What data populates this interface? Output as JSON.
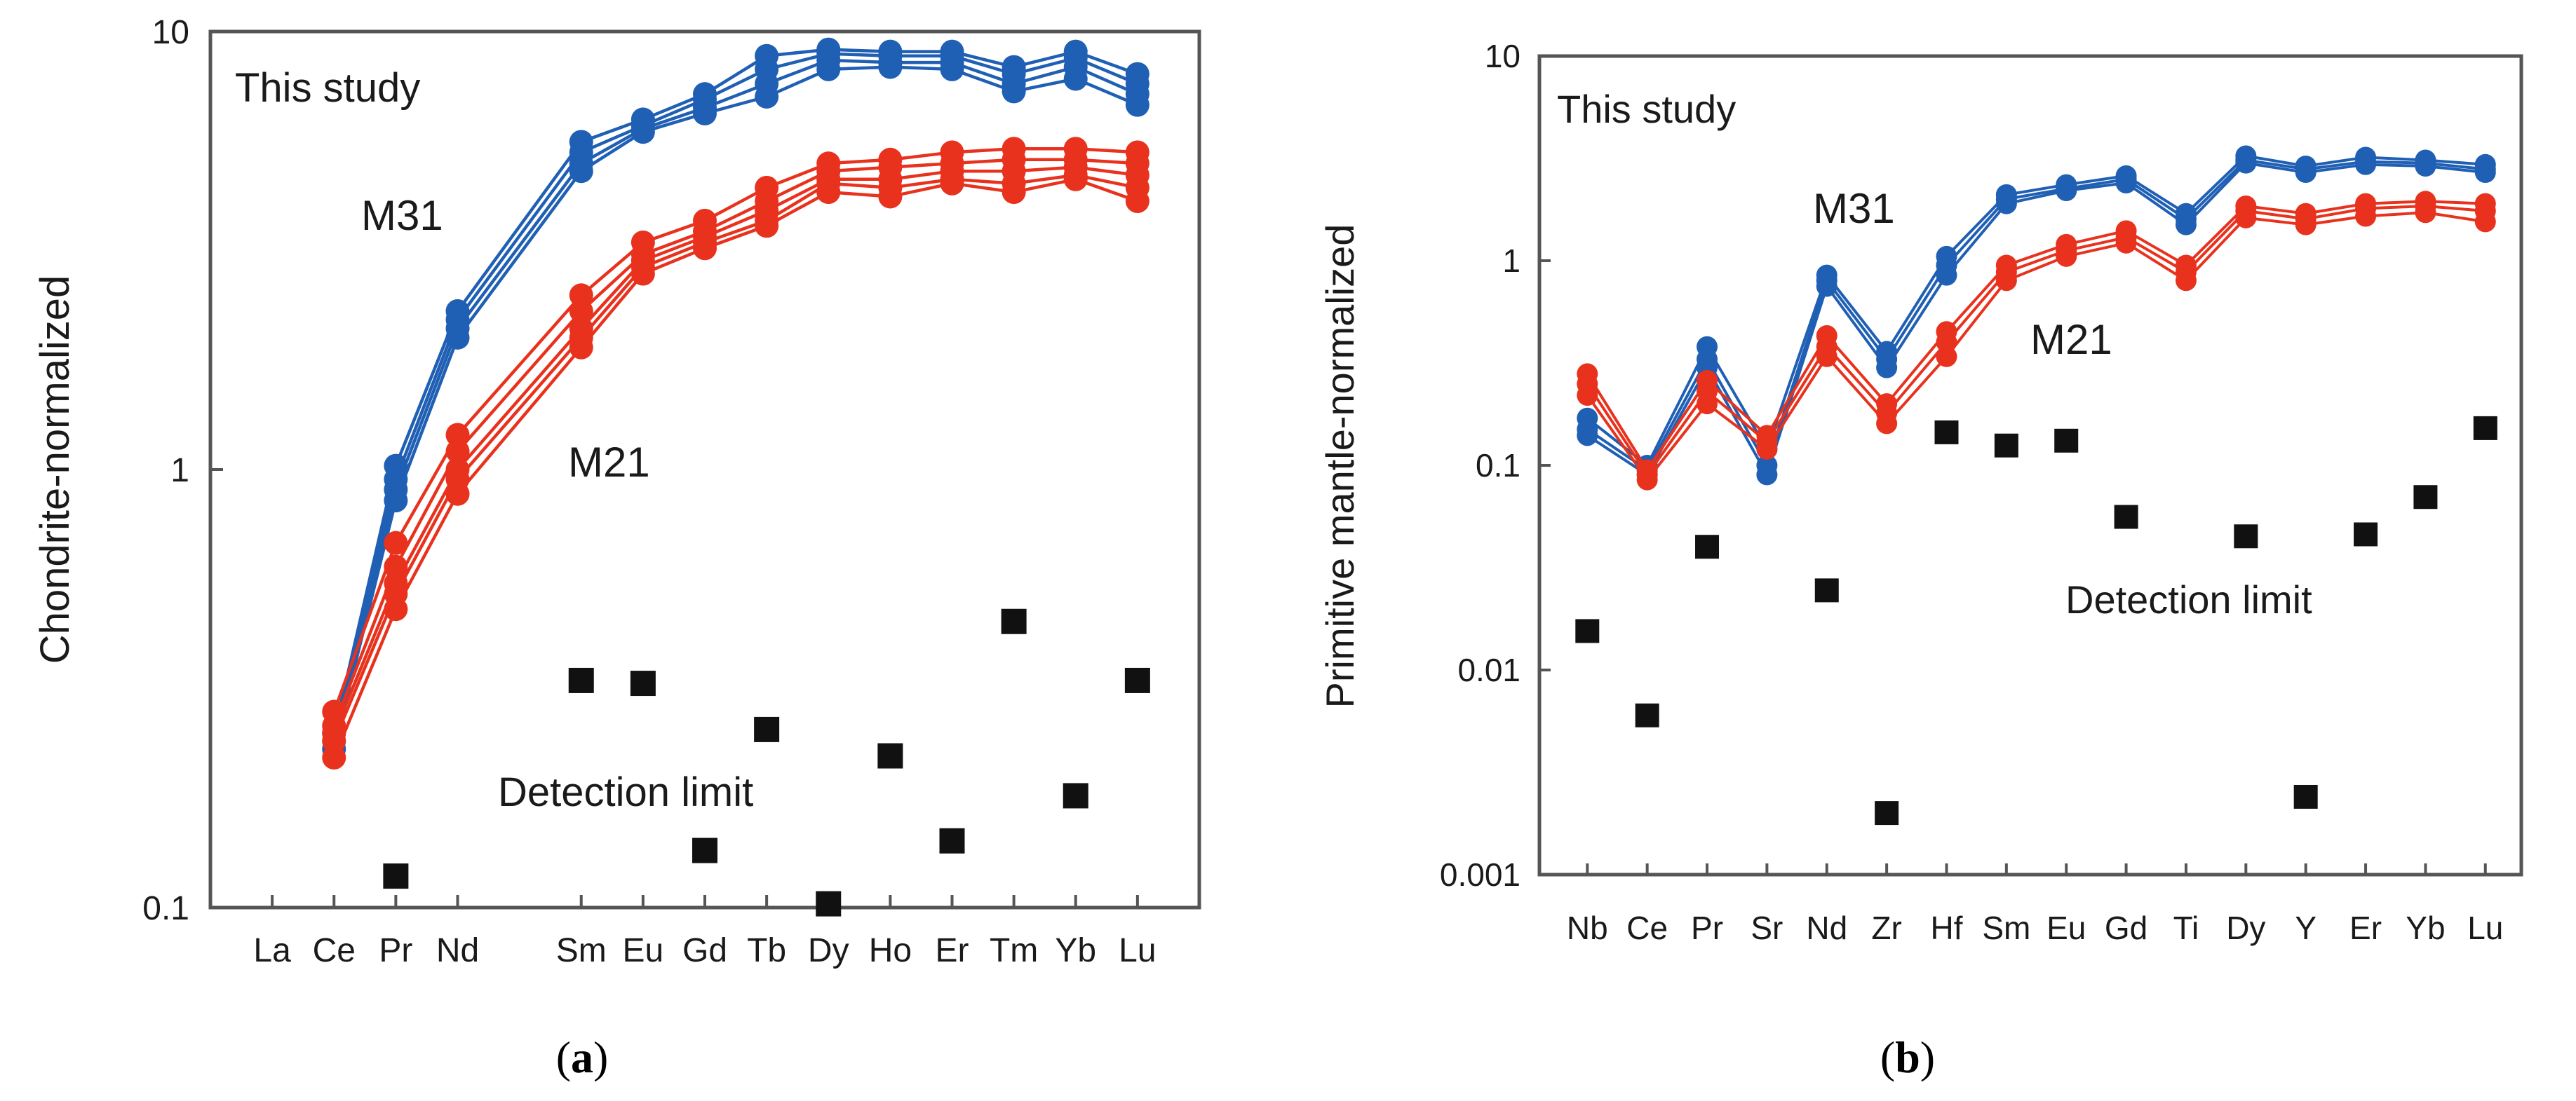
{
  "colors": {
    "m31": "#1f5fb4",
    "m21": "#e8321e",
    "m31_label": "#2b2f8c",
    "m21_label": "#e8321e",
    "detection": "#111111"
  },
  "chart_data": [
    {
      "type": "line",
      "panel_label": "a",
      "caption": {
        "open": "(",
        "letter": "a",
        "close": ")"
      },
      "ylabel": "Chondrite-normalized",
      "yscale": "log",
      "ylim": [
        0.1,
        10
      ],
      "yticks": [
        {
          "value": 0.1,
          "label": "0.1"
        },
        {
          "value": 1,
          "label": "1"
        },
        {
          "value": 10,
          "label": "10"
        }
      ],
      "categories": [
        "La",
        "Ce",
        "Pr",
        "Nd",
        "Sm",
        "Eu",
        "Gd",
        "Tb",
        "Dy",
        "Ho",
        "Er",
        "Tm",
        "Yb",
        "Lu"
      ],
      "category_positions": [
        1,
        2,
        3,
        4,
        6,
        7,
        8,
        9,
        10,
        11,
        12,
        13,
        14,
        15
      ],
      "xlim": [
        0,
        16
      ],
      "title_annotation": "This study",
      "series_labels": [
        {
          "series": "M31",
          "text": "M31"
        },
        {
          "series": "M21",
          "text": "M21"
        }
      ],
      "detection_label": "Detection limit",
      "series": [
        {
          "name": "M31",
          "group": "M31",
          "x": [
            2,
            3,
            4,
            6,
            7,
            8,
            9,
            10,
            11,
            12,
            13,
            14,
            15
          ],
          "values": [
            0.25,
            1.02,
            2.3,
            5.6,
            6.3,
            7.2,
            8.8,
            9.1,
            9.0,
            9.0,
            8.3,
            9.0,
            8.0
          ]
        },
        {
          "name": "M31",
          "group": "M31",
          "x": [
            2,
            3,
            4,
            6,
            7,
            8,
            9,
            10,
            11,
            12,
            13,
            14,
            15
          ],
          "values": [
            0.25,
            0.95,
            2.2,
            5.3,
            6.1,
            7.0,
            8.2,
            8.9,
            8.8,
            8.8,
            8.0,
            8.7,
            7.6
          ]
        },
        {
          "name": "M31",
          "group": "M31",
          "x": [
            2,
            3,
            4,
            6,
            7,
            8,
            9,
            10,
            11,
            12,
            13,
            14,
            15
          ],
          "values": [
            0.24,
            0.9,
            2.1,
            5.0,
            6.0,
            6.7,
            7.6,
            8.6,
            8.5,
            8.5,
            7.6,
            8.3,
            7.2
          ]
        },
        {
          "name": "M31",
          "group": "M31",
          "x": [
            2,
            3,
            4,
            6,
            7,
            8,
            9,
            10,
            11,
            12,
            13,
            14,
            15
          ],
          "values": [
            0.23,
            0.85,
            2.0,
            4.8,
            5.9,
            6.5,
            7.1,
            8.2,
            8.3,
            8.2,
            7.3,
            7.8,
            6.8
          ]
        },
        {
          "name": "M21",
          "group": "M21",
          "x": [
            2,
            3,
            4,
            6,
            7,
            8,
            9,
            10,
            11,
            12,
            13,
            14,
            15
          ],
          "values": [
            0.28,
            0.68,
            1.2,
            2.5,
            3.3,
            3.7,
            4.4,
            5.0,
            5.1,
            5.3,
            5.4,
            5.4,
            5.3
          ]
        },
        {
          "name": "M21",
          "group": "M21",
          "x": [
            2,
            3,
            4,
            6,
            7,
            8,
            9,
            10,
            11,
            12,
            13,
            14,
            15
          ],
          "values": [
            0.26,
            0.6,
            1.1,
            2.3,
            3.1,
            3.5,
            4.1,
            4.8,
            4.9,
            5.0,
            5.1,
            5.1,
            5.0
          ]
        },
        {
          "name": "M21",
          "group": "M21",
          "x": [
            2,
            3,
            4,
            6,
            7,
            8,
            9,
            10,
            11,
            12,
            13,
            14,
            15
          ],
          "values": [
            0.25,
            0.55,
            1.0,
            2.1,
            3.0,
            3.4,
            3.9,
            4.6,
            4.6,
            4.8,
            4.8,
            4.9,
            4.7
          ]
        },
        {
          "name": "M21",
          "group": "M21",
          "x": [
            2,
            3,
            4,
            6,
            7,
            8,
            9,
            10,
            11,
            12,
            13,
            14,
            15
          ],
          "values": [
            0.24,
            0.52,
            0.95,
            2.0,
            2.9,
            3.3,
            3.7,
            4.5,
            4.4,
            4.6,
            4.5,
            4.7,
            4.4
          ]
        },
        {
          "name": "M21",
          "group": "M21",
          "x": [
            2,
            3,
            4,
            6,
            7,
            8,
            9,
            10,
            11,
            12,
            13,
            14,
            15
          ],
          "values": [
            0.22,
            0.48,
            0.88,
            1.9,
            2.8,
            3.2,
            3.6,
            4.3,
            4.2,
            4.5,
            4.3,
            4.6,
            4.1
          ]
        }
      ],
      "detection_limit": {
        "x": [
          3,
          6,
          7,
          8,
          9,
          10,
          11,
          12,
          13,
          14,
          15
        ],
        "values": [
          0.118,
          0.33,
          0.325,
          0.135,
          0.255,
          0.102,
          0.222,
          0.142,
          0.45,
          0.18,
          0.33
        ]
      }
    },
    {
      "type": "line",
      "panel_label": "b",
      "caption": {
        "open": "(",
        "letter": "b",
        "close": ")"
      },
      "ylabel": "Primitive mantle-normalized",
      "yscale": "log",
      "ylim": [
        0.001,
        10
      ],
      "yticks": [
        {
          "value": 0.001,
          "label": "0.001"
        },
        {
          "value": 0.01,
          "label": "0.01"
        },
        {
          "value": 0.1,
          "label": "0.1"
        },
        {
          "value": 1,
          "label": "1"
        },
        {
          "value": 10,
          "label": "10"
        }
      ],
      "categories": [
        "Nb",
        "Ce",
        "Pr",
        "Sr",
        "Nd",
        "Zr",
        "Hf",
        "Sm",
        "Eu",
        "Gd",
        "Ti",
        "Dy",
        "Y",
        "Er",
        "Yb",
        "Lu"
      ],
      "category_positions": [
        1,
        2,
        3,
        4,
        5,
        6,
        7,
        8,
        9,
        10,
        11,
        12,
        13,
        14,
        15,
        16
      ],
      "xlim": [
        0.2,
        16.6
      ],
      "title_annotation": "This study",
      "series_labels": [
        {
          "series": "M31",
          "text": "M31"
        },
        {
          "series": "M21",
          "text": "M21"
        }
      ],
      "detection_label": "Detection limit",
      "series": [
        {
          "name": "M31",
          "group": "M31",
          "x": [
            1,
            2,
            3,
            4,
            5,
            6,
            7,
            8,
            9,
            10,
            11,
            12,
            13,
            14,
            15,
            16
          ],
          "values": [
            0.17,
            0.1,
            0.38,
            0.12,
            0.85,
            0.36,
            1.05,
            2.1,
            2.35,
            2.6,
            1.7,
            3.25,
            2.9,
            3.2,
            3.1,
            2.95
          ]
        },
        {
          "name": "M31",
          "group": "M31",
          "x": [
            1,
            2,
            3,
            4,
            5,
            6,
            7,
            8,
            9,
            10,
            11,
            12,
            13,
            14,
            15,
            16
          ],
          "values": [
            0.15,
            0.095,
            0.33,
            0.1,
            0.8,
            0.33,
            0.95,
            2.0,
            2.25,
            2.5,
            1.6,
            3.1,
            2.8,
            3.05,
            3.0,
            2.8
          ]
        },
        {
          "name": "M31",
          "group": "M31",
          "x": [
            1,
            2,
            3,
            4,
            5,
            6,
            7,
            8,
            9,
            10,
            11,
            12,
            13,
            14,
            15,
            16
          ],
          "values": [
            0.14,
            0.09,
            0.3,
            0.09,
            0.75,
            0.3,
            0.85,
            1.9,
            2.2,
            2.4,
            1.5,
            3.0,
            2.7,
            2.95,
            2.9,
            2.7
          ]
        },
        {
          "name": "M21",
          "group": "M21",
          "x": [
            1,
            2,
            3,
            4,
            5,
            6,
            7,
            8,
            9,
            10,
            11,
            12,
            13,
            14,
            15,
            16
          ],
          "values": [
            0.28,
            0.095,
            0.26,
            0.14,
            0.43,
            0.2,
            0.45,
            0.95,
            1.2,
            1.4,
            0.95,
            1.85,
            1.7,
            1.9,
            1.95,
            1.9
          ]
        },
        {
          "name": "M21",
          "group": "M21",
          "x": [
            1,
            2,
            3,
            4,
            5,
            6,
            7,
            8,
            9,
            10,
            11,
            12,
            13,
            14,
            15,
            16
          ],
          "values": [
            0.25,
            0.09,
            0.23,
            0.13,
            0.38,
            0.18,
            0.4,
            0.88,
            1.12,
            1.3,
            0.88,
            1.75,
            1.6,
            1.8,
            1.85,
            1.75
          ]
        },
        {
          "name": "M21",
          "group": "M21",
          "x": [
            1,
            2,
            3,
            4,
            5,
            6,
            7,
            8,
            9,
            10,
            11,
            12,
            13,
            14,
            15,
            16
          ],
          "values": [
            0.22,
            0.085,
            0.2,
            0.12,
            0.34,
            0.16,
            0.34,
            0.8,
            1.05,
            1.22,
            0.8,
            1.62,
            1.5,
            1.65,
            1.72,
            1.55
          ]
        }
      ],
      "detection_limit": {
        "x": [
          1,
          2,
          3,
          5,
          6,
          7,
          8,
          9,
          10,
          12,
          13,
          14,
          15,
          16
        ],
        "values": [
          0.0155,
          0.006,
          0.04,
          0.0245,
          0.002,
          0.145,
          0.125,
          0.132,
          0.056,
          0.045,
          0.0024,
          0.046,
          0.07,
          0.152
        ]
      }
    }
  ]
}
